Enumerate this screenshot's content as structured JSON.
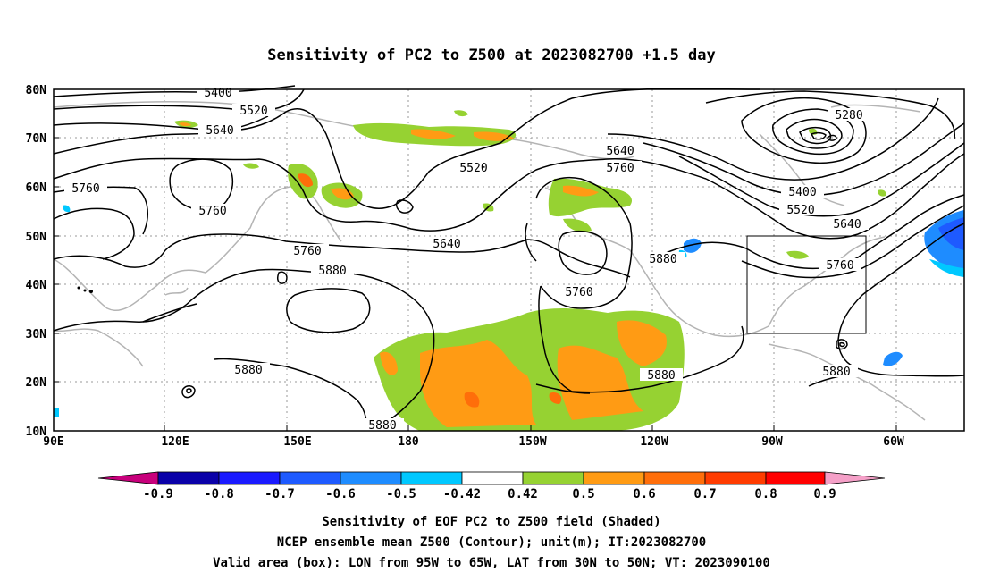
{
  "title": "Sensitivity of PC2 to Z500 at 2023082700 +1.5 day",
  "map": {
    "lon_ticks": [
      "90E",
      "120E",
      "150E",
      "180",
      "150W",
      "120W",
      "90W",
      "60W"
    ],
    "lat_ticks": [
      "80N",
      "70N",
      "60N",
      "50N",
      "40N",
      "30N",
      "20N",
      "10N"
    ],
    "contour_labels": [
      "5400",
      "5520",
      "5640",
      "5760",
      "5520",
      "5280",
      "5640",
      "5760",
      "5400",
      "5520",
      "5640",
      "5760",
      "5760",
      "5640",
      "5880",
      "5760",
      "5760",
      "5880",
      "5880",
      "5880",
      "5880",
      "5880"
    ],
    "valid_box": {
      "lon_min": -95,
      "lon_max": -65,
      "lat_min": 30,
      "lat_max": 50
    }
  },
  "colorbar": {
    "labels": [
      "-0.9",
      "-0.8",
      "-0.7",
      "-0.6",
      "-0.5",
      "-0.42",
      "0.42",
      "0.5",
      "0.6",
      "0.7",
      "0.8",
      "0.9"
    ],
    "colors": [
      "#c8007c",
      "#0a00a8",
      "#1a1aff",
      "#1e5aff",
      "#1e8cff",
      "#00c8ff",
      "#ffffff",
      "#96d232",
      "#ff9b14",
      "#ff6e0a",
      "#ff3c00",
      "#ff0000",
      "#f5a0c8"
    ]
  },
  "captions": {
    "line1": "Sensitivity of EOF PC2 to Z500 field (Shaded)",
    "line2": "NCEP ensemble mean Z500 (Contour); unit(m); IT:2023082700",
    "line3": "Valid area (box): LON from 95W to 65W, LAT from 30N to 50N; VT: 2023090100"
  }
}
